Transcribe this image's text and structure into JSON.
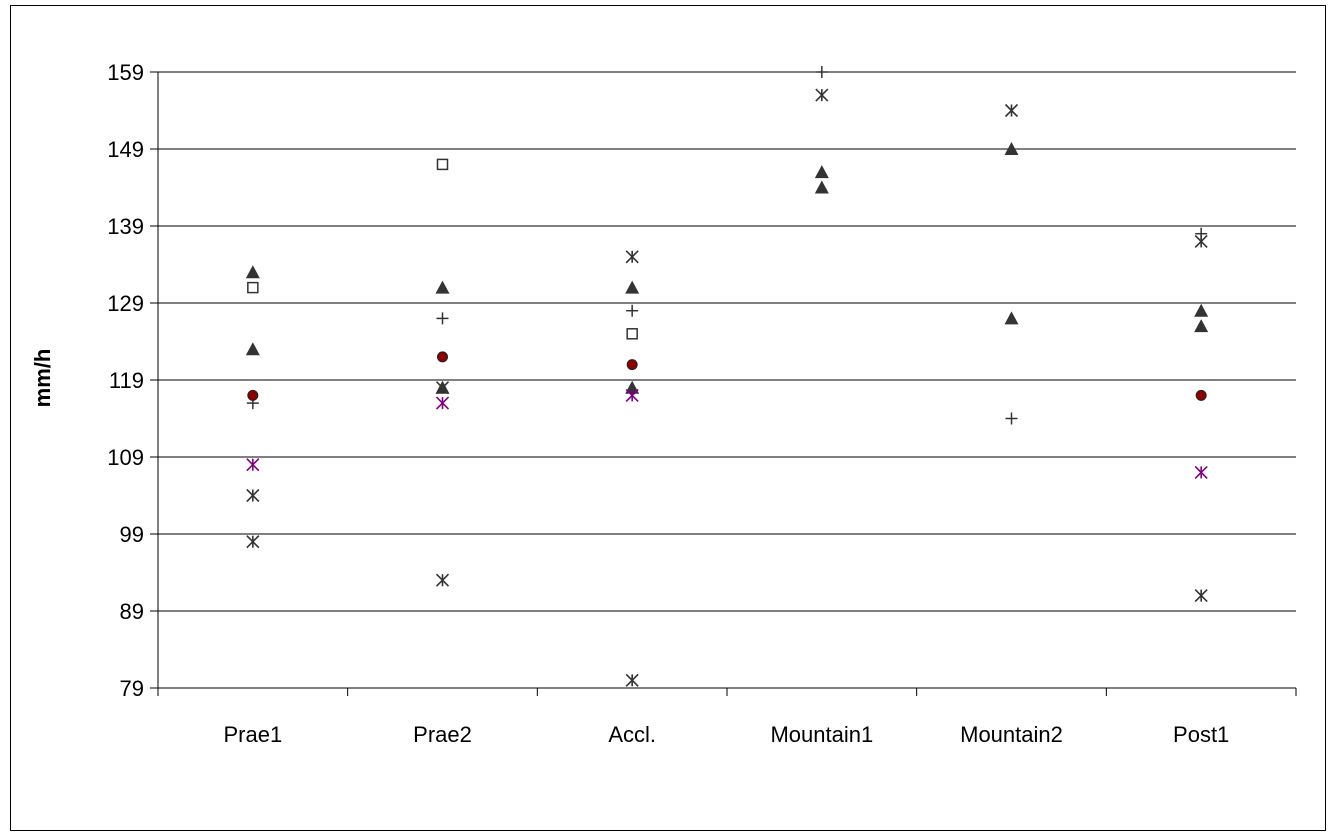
{
  "chart_data": {
    "type": "scatter",
    "title": "",
    "xlabel": "",
    "ylabel": "mm/h",
    "categories": [
      "Prae1",
      "Prae2",
      "Accl.",
      "Mountain1",
      "Mountain2",
      "Post1"
    ],
    "ylim": [
      79,
      159
    ],
    "yticks": [
      79,
      89,
      99,
      109,
      119,
      129,
      139,
      149,
      159
    ],
    "grid": true,
    "legend": "none",
    "series": [
      {
        "marker": "triangle",
        "color": "#333333",
        "points": [
          {
            "category": "Prae1",
            "values": [
              133,
              123
            ]
          },
          {
            "category": "Prae2",
            "values": [
              131,
              118
            ]
          },
          {
            "category": "Accl.",
            "values": [
              131,
              118
            ]
          },
          {
            "category": "Mountain1",
            "values": [
              146,
              144
            ]
          },
          {
            "category": "Mountain2",
            "values": [
              149,
              127
            ]
          },
          {
            "category": "Post1",
            "values": [
              128,
              126
            ]
          }
        ]
      },
      {
        "marker": "square-open",
        "color": "#333333",
        "points": [
          {
            "category": "Prae1",
            "values": [
              131
            ]
          },
          {
            "category": "Prae2",
            "values": [
              147
            ]
          },
          {
            "category": "Accl.",
            "values": [
              125
            ]
          }
        ]
      },
      {
        "marker": "plus",
        "color": "#333333",
        "points": [
          {
            "category": "Prae1",
            "values": [
              116
            ]
          },
          {
            "category": "Prae2",
            "values": [
              127
            ]
          },
          {
            "category": "Accl.",
            "values": [
              128
            ]
          },
          {
            "category": "Mountain1",
            "values": [
              159
            ]
          },
          {
            "category": "Mountain2",
            "values": [
              114
            ]
          },
          {
            "category": "Post1",
            "values": [
              138
            ]
          }
        ]
      },
      {
        "marker": "circle-dark-red",
        "color": "#8b0000",
        "points": [
          {
            "category": "Prae1",
            "values": [
              117
            ]
          },
          {
            "category": "Prae2",
            "values": [
              122
            ]
          },
          {
            "category": "Accl.",
            "values": [
              121
            ]
          },
          {
            "category": "Post1",
            "values": [
              117
            ]
          }
        ]
      },
      {
        "marker": "asterisk-purple",
        "color": "#800080",
        "points": [
          {
            "category": "Prae1",
            "values": [
              108
            ]
          },
          {
            "category": "Prae2",
            "values": [
              116
            ]
          },
          {
            "category": "Accl.",
            "values": [
              117
            ]
          },
          {
            "category": "Post1",
            "values": [
              107
            ]
          }
        ]
      },
      {
        "marker": "asterisk",
        "color": "#333333",
        "points": [
          {
            "category": "Prae1",
            "values": [
              104,
              98
            ]
          },
          {
            "category": "Prae2",
            "values": [
              118,
              93
            ]
          },
          {
            "category": "Accl.",
            "values": [
              135,
              80
            ]
          },
          {
            "category": "Mountain1",
            "values": [
              156
            ]
          },
          {
            "category": "Mountain2",
            "values": [
              154
            ]
          },
          {
            "category": "Post1",
            "values": [
              137,
              91
            ]
          }
        ]
      }
    ]
  }
}
